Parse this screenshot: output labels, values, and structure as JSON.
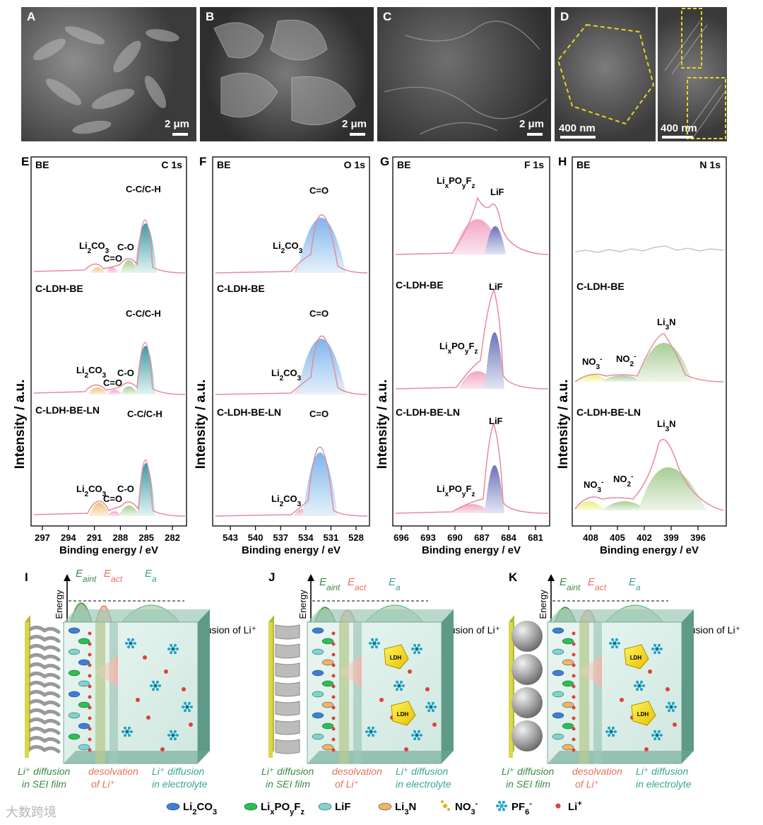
{
  "sem": [
    {
      "label": "A",
      "scale": "2 μm"
    },
    {
      "label": "B",
      "scale": "2 μm"
    },
    {
      "label": "C",
      "scale": "2 μm"
    },
    {
      "label": "D",
      "scale": "400 nm",
      "scale2": "400 nm"
    }
  ],
  "xps": {
    "ylabel": "Intensity / a.u.",
    "xlabel": "Binding energy / eV",
    "panels": [
      {
        "label": "E",
        "element": "C 1s",
        "ticks": [
          "297",
          "294",
          "291",
          "288",
          "285",
          "282"
        ],
        "rows": [
          {
            "sample": "BE",
            "peaks": [
              "Li2CO3",
              "C=O",
              "C-O",
              "C-C/C-H"
            ]
          },
          {
            "sample": "C-LDH-BE",
            "peaks": [
              "Li2CO3",
              "C=O",
              "C-O",
              "C-C/C-H"
            ]
          },
          {
            "sample": "C-LDH-BE-LN",
            "peaks": [
              "Li2CO3",
              "C=O",
              "C-O",
              "C-C/C-H"
            ]
          }
        ]
      },
      {
        "label": "F",
        "element": "O 1s",
        "ticks": [
          "543",
          "540",
          "537",
          "534",
          "531",
          "528"
        ],
        "rows": [
          {
            "sample": "BE",
            "peaks": [
              "Li2CO3",
              "C=O"
            ]
          },
          {
            "sample": "C-LDH-BE",
            "peaks": [
              "Li2CO3",
              "C=O"
            ]
          },
          {
            "sample": "C-LDH-BE-LN",
            "peaks": [
              "Li2CO3",
              "C=O"
            ]
          }
        ]
      },
      {
        "label": "G",
        "element": "F 1s",
        "ticks": [
          "696",
          "693",
          "690",
          "687",
          "684",
          "681"
        ],
        "rows": [
          {
            "sample": "BE",
            "peaks": [
              "LixPOyFz",
              "LiF"
            ]
          },
          {
            "sample": "C-LDH-BE",
            "peaks": [
              "LixPOyFz",
              "LiF"
            ]
          },
          {
            "sample": "C-LDH-BE-LN",
            "peaks": [
              "LixPOyFz",
              "LiF"
            ]
          }
        ]
      },
      {
        "label": "H",
        "element": "N 1s",
        "ticks": [
          "408",
          "405",
          "402",
          "399",
          "396"
        ],
        "rows": [
          {
            "sample": "BE",
            "peaks": []
          },
          {
            "sample": "C-LDH-BE",
            "peaks": [
              "NO3-",
              "NO2-",
              "Li3N"
            ]
          },
          {
            "sample": "C-LDH-BE-LN",
            "peaks": [
              "NO3-",
              "NO2-",
              "Li3N"
            ]
          }
        ]
      }
    ]
  },
  "schemes": [
    {
      "label": "I"
    },
    {
      "label": "J"
    },
    {
      "label": "K"
    }
  ],
  "scheme_text": {
    "energy": "Energy",
    "eaint": "E",
    "eaint_sub": "aint",
    "eact": "E",
    "eact_sub": "act",
    "ea": "E",
    "ea_sub": "a",
    "diffusion": "Diffusion of Li⁺",
    "sei1": "Li⁺ diffusion",
    "sei2": "in SEI film",
    "desolv1": "desolvation",
    "desolv2": "of Li⁺",
    "elec1": "Li⁺ diffusion",
    "elec2": "in electrolyte",
    "ldh": "LDH"
  },
  "legend": [
    {
      "name": "Li2CO3",
      "color": "#3f7fd0"
    },
    {
      "name": "LixPOyFz",
      "color": "#29c24a"
    },
    {
      "name": "LiF",
      "color": "#7ed6c4"
    },
    {
      "name": "Li3N",
      "color": "#f2b45c"
    },
    {
      "name": "NO3-",
      "color": "#e0b020"
    },
    {
      "name": "PF6-",
      "color": "#1fa6c6"
    },
    {
      "name": "Li+",
      "color": "#e0403a"
    }
  ],
  "watermark": "大数跨境",
  "colors": {
    "pink": "#e88a9a",
    "greenFill": "#c7e0bf",
    "blueFill": "#b7d5f0",
    "tealFill": "#a9d6cf"
  }
}
